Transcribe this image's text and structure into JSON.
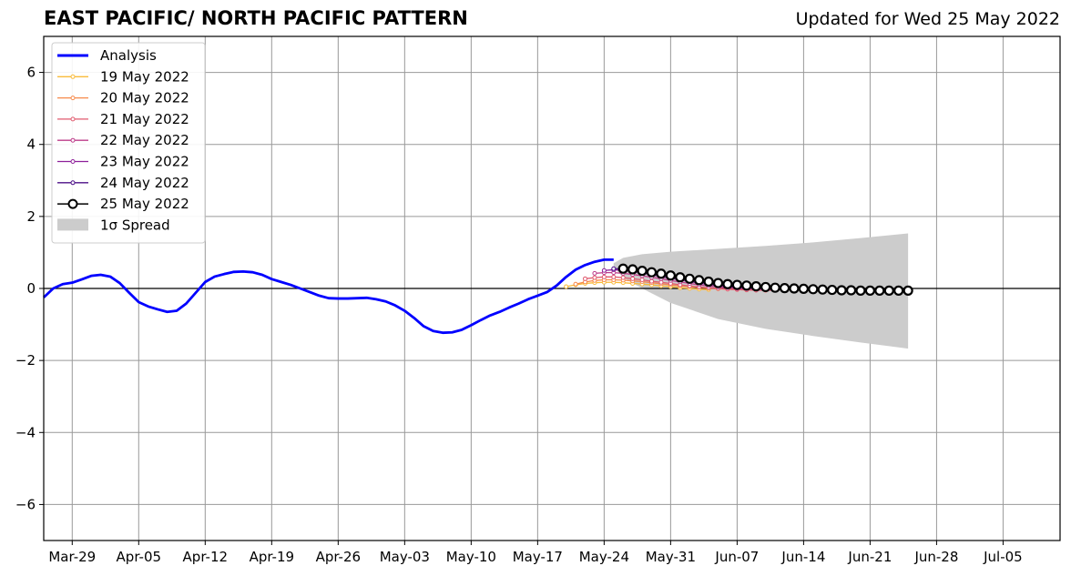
{
  "header": {
    "title": "EAST PACIFIC/ NORTH PACIFIC PATTERN",
    "updated": "Updated for Wed 25 May 2022"
  },
  "chart_data": {
    "type": "line",
    "title": "EAST PACIFIC/ NORTH PACIFIC PATTERN",
    "subtitle": "Updated for Wed 25 May 2022",
    "xlabel": "",
    "ylabel": "",
    "xlim": [
      "2022-03-26",
      "2022-07-11"
    ],
    "ylim": [
      -7,
      7
    ],
    "grid": true,
    "legend_position": "top-left",
    "x_ticks": [
      "Mar-29",
      "Apr-05",
      "Apr-12",
      "Apr-19",
      "Apr-26",
      "May-03",
      "May-10",
      "May-17",
      "May-24",
      "May-31",
      "Jun-07",
      "Jun-14",
      "Jun-21",
      "Jun-28",
      "Jul-05"
    ],
    "x_tick_dates": [
      "2022-03-29",
      "2022-04-05",
      "2022-04-12",
      "2022-04-19",
      "2022-04-26",
      "2022-05-03",
      "2022-05-10",
      "2022-05-17",
      "2022-05-24",
      "2022-05-31",
      "2022-06-07",
      "2022-06-14",
      "2022-06-21",
      "2022-06-28",
      "2022-07-05"
    ],
    "y_ticks": [
      6,
      4,
      2,
      0,
      -2,
      -4,
      -6
    ],
    "y_tick_labels": [
      "6",
      "4",
      "2",
      "0",
      "−2",
      "−4",
      "−6"
    ],
    "analysis": {
      "name": "Analysis",
      "color": "#0000ff",
      "x": [
        "2022-03-26",
        "2022-03-27",
        "2022-03-28",
        "2022-03-29",
        "2022-03-30",
        "2022-03-31",
        "2022-04-01",
        "2022-04-02",
        "2022-04-03",
        "2022-04-04",
        "2022-04-05",
        "2022-04-06",
        "2022-04-07",
        "2022-04-08",
        "2022-04-09",
        "2022-04-10",
        "2022-04-11",
        "2022-04-12",
        "2022-04-13",
        "2022-04-14",
        "2022-04-15",
        "2022-04-16",
        "2022-04-17",
        "2022-04-18",
        "2022-04-19",
        "2022-04-20",
        "2022-04-21",
        "2022-04-22",
        "2022-04-23",
        "2022-04-24",
        "2022-04-25",
        "2022-04-26",
        "2022-04-27",
        "2022-04-28",
        "2022-04-29",
        "2022-04-30",
        "2022-05-01",
        "2022-05-02",
        "2022-05-03",
        "2022-05-04",
        "2022-05-05",
        "2022-05-06",
        "2022-05-07",
        "2022-05-08",
        "2022-05-09",
        "2022-05-10",
        "2022-05-11",
        "2022-05-12",
        "2022-05-13",
        "2022-05-14",
        "2022-05-15",
        "2022-05-16",
        "2022-05-17",
        "2022-05-18",
        "2022-05-19",
        "2022-05-20",
        "2022-05-21",
        "2022-05-22",
        "2022-05-23",
        "2022-05-24",
        "2022-05-25"
      ],
      "y": [
        -0.25,
        0.0,
        0.12,
        0.16,
        0.25,
        0.35,
        0.38,
        0.33,
        0.15,
        -0.12,
        -0.38,
        -0.5,
        -0.58,
        -0.65,
        -0.62,
        -0.42,
        -0.12,
        0.18,
        0.33,
        0.4,
        0.46,
        0.47,
        0.45,
        0.38,
        0.26,
        0.18,
        0.1,
        0.0,
        -0.1,
        -0.2,
        -0.27,
        -0.28,
        -0.28,
        -0.27,
        -0.26,
        -0.3,
        -0.36,
        -0.47,
        -0.62,
        -0.82,
        -1.05,
        -1.18,
        -1.23,
        -1.22,
        -1.15,
        -1.02,
        -0.88,
        -0.75,
        -0.65,
        -0.53,
        -0.42,
        -0.3,
        -0.2,
        -0.1,
        0.08,
        0.32,
        0.52,
        0.65,
        0.74,
        0.8,
        0.8
      ]
    },
    "forecasts": [
      {
        "name": "19 May 2022",
        "color": "#f9bb3a",
        "x": [
          "2022-05-20",
          "2022-05-21",
          "2022-05-22",
          "2022-05-23",
          "2022-05-24",
          "2022-05-25",
          "2022-05-26",
          "2022-05-27",
          "2022-05-28",
          "2022-05-29",
          "2022-05-30",
          "2022-05-31",
          "2022-06-01",
          "2022-06-02",
          "2022-06-03",
          "2022-06-04"
        ],
        "y": [
          0.05,
          0.1,
          0.14,
          0.16,
          0.17,
          0.17,
          0.16,
          0.14,
          0.12,
          0.1,
          0.07,
          0.05,
          0.02,
          0.0,
          -0.02,
          -0.03
        ]
      },
      {
        "name": "20 May 2022",
        "color": "#f7894a",
        "x": [
          "2022-05-21",
          "2022-05-22",
          "2022-05-23",
          "2022-05-24",
          "2022-05-25",
          "2022-05-26",
          "2022-05-27",
          "2022-05-28",
          "2022-05-29",
          "2022-05-30",
          "2022-05-31",
          "2022-06-01",
          "2022-06-02",
          "2022-06-03",
          "2022-06-04",
          "2022-06-05",
          "2022-06-06",
          "2022-06-07",
          "2022-06-08",
          "2022-06-09",
          "2022-06-10"
        ],
        "y": [
          0.12,
          0.18,
          0.22,
          0.24,
          0.24,
          0.23,
          0.21,
          0.19,
          0.16,
          0.13,
          0.1,
          0.07,
          0.05,
          0.03,
          0.01,
          -0.01,
          -0.02,
          -0.03,
          -0.04,
          -0.04,
          -0.05
        ]
      },
      {
        "name": "21 May 2022",
        "color": "#e05a6e",
        "x": [
          "2022-05-22",
          "2022-05-23",
          "2022-05-24",
          "2022-05-25",
          "2022-05-26",
          "2022-05-27",
          "2022-05-28",
          "2022-05-29",
          "2022-05-30",
          "2022-05-31",
          "2022-06-01",
          "2022-06-02",
          "2022-06-03",
          "2022-06-04",
          "2022-06-05",
          "2022-06-06",
          "2022-06-07",
          "2022-06-08",
          "2022-06-09",
          "2022-06-10",
          "2022-06-11"
        ],
        "y": [
          0.27,
          0.3,
          0.32,
          0.32,
          0.3,
          0.27,
          0.24,
          0.2,
          0.17,
          0.14,
          0.1,
          0.07,
          0.04,
          0.02,
          0.0,
          -0.02,
          -0.03,
          -0.04,
          -0.05,
          -0.05,
          -0.05
        ]
      },
      {
        "name": "22 May 2022",
        "color": "#bd3c8a",
        "x": [
          "2022-05-23",
          "2022-05-24",
          "2022-05-25",
          "2022-05-26",
          "2022-05-27",
          "2022-05-28",
          "2022-05-29",
          "2022-05-30",
          "2022-05-31",
          "2022-06-01",
          "2022-06-02",
          "2022-06-03",
          "2022-06-04",
          "2022-06-05",
          "2022-06-06",
          "2022-06-07",
          "2022-06-08",
          "2022-06-09",
          "2022-06-10",
          "2022-06-11",
          "2022-06-12"
        ],
        "y": [
          0.42,
          0.44,
          0.44,
          0.42,
          0.39,
          0.35,
          0.31,
          0.27,
          0.22,
          0.18,
          0.14,
          0.1,
          0.07,
          0.04,
          0.02,
          0.0,
          -0.01,
          -0.02,
          -0.03,
          -0.03,
          -0.03
        ]
      },
      {
        "name": "23 May 2022",
        "color": "#8d1f9a",
        "x": [
          "2022-05-24",
          "2022-05-25",
          "2022-05-26",
          "2022-05-27",
          "2022-05-28",
          "2022-05-29",
          "2022-05-30",
          "2022-05-31",
          "2022-06-01",
          "2022-06-02",
          "2022-06-03",
          "2022-06-04",
          "2022-06-05",
          "2022-06-06",
          "2022-06-07",
          "2022-06-08",
          "2022-06-09",
          "2022-06-10",
          "2022-06-11",
          "2022-06-12",
          "2022-06-13"
        ],
        "y": [
          0.5,
          0.52,
          0.5,
          0.47,
          0.43,
          0.38,
          0.33,
          0.28,
          0.24,
          0.19,
          0.15,
          0.11,
          0.08,
          0.05,
          0.03,
          0.01,
          0.0,
          -0.01,
          -0.02,
          -0.02,
          -0.02
        ]
      },
      {
        "name": "24 May 2022",
        "color": "#4b0f87",
        "x": [
          "2022-05-25",
          "2022-05-26",
          "2022-05-27",
          "2022-05-28",
          "2022-05-29",
          "2022-05-30",
          "2022-05-31",
          "2022-06-01",
          "2022-06-02",
          "2022-06-03",
          "2022-06-04",
          "2022-06-05",
          "2022-06-06",
          "2022-06-07",
          "2022-06-08",
          "2022-06-09",
          "2022-06-10",
          "2022-06-11",
          "2022-06-12",
          "2022-06-13",
          "2022-06-14"
        ],
        "y": [
          0.55,
          0.55,
          0.52,
          0.48,
          0.43,
          0.38,
          0.33,
          0.28,
          0.23,
          0.19,
          0.15,
          0.11,
          0.08,
          0.06,
          0.04,
          0.02,
          0.01,
          0.0,
          -0.01,
          -0.01,
          -0.02
        ]
      }
    ],
    "current_forecast": {
      "name": "25 May 2022",
      "color": "#000000",
      "x": [
        "2022-05-26",
        "2022-05-27",
        "2022-05-28",
        "2022-05-29",
        "2022-05-30",
        "2022-05-31",
        "2022-06-01",
        "2022-06-02",
        "2022-06-03",
        "2022-06-04",
        "2022-06-05",
        "2022-06-06",
        "2022-06-07",
        "2022-06-08",
        "2022-06-09",
        "2022-06-10",
        "2022-06-11",
        "2022-06-12",
        "2022-06-13",
        "2022-06-14",
        "2022-06-15",
        "2022-06-16",
        "2022-06-17",
        "2022-06-18",
        "2022-06-19",
        "2022-06-20",
        "2022-06-21",
        "2022-06-22",
        "2022-06-23",
        "2022-06-24",
        "2022-06-25"
      ],
      "y": [
        0.55,
        0.53,
        0.49,
        0.45,
        0.41,
        0.36,
        0.31,
        0.27,
        0.23,
        0.19,
        0.15,
        0.12,
        0.1,
        0.08,
        0.06,
        0.04,
        0.02,
        0.01,
        0.0,
        -0.01,
        -0.02,
        -0.03,
        -0.04,
        -0.05,
        -0.05,
        -0.06,
        -0.06,
        -0.06,
        -0.06,
        -0.06,
        -0.06
      ]
    },
    "spread": {
      "name": "1σ Spread",
      "color": "#cccccc",
      "x": [
        "2022-05-25",
        "2022-05-26",
        "2022-05-28",
        "2022-05-31",
        "2022-06-05",
        "2022-06-10",
        "2022-06-15",
        "2022-06-20",
        "2022-06-25"
      ],
      "upper": [
        0.7,
        0.85,
        0.95,
        1.02,
        1.1,
        1.18,
        1.28,
        1.4,
        1.53
      ],
      "lower": [
        0.6,
        0.3,
        0.0,
        -0.4,
        -0.85,
        -1.12,
        -1.32,
        -1.5,
        -1.67
      ]
    }
  }
}
